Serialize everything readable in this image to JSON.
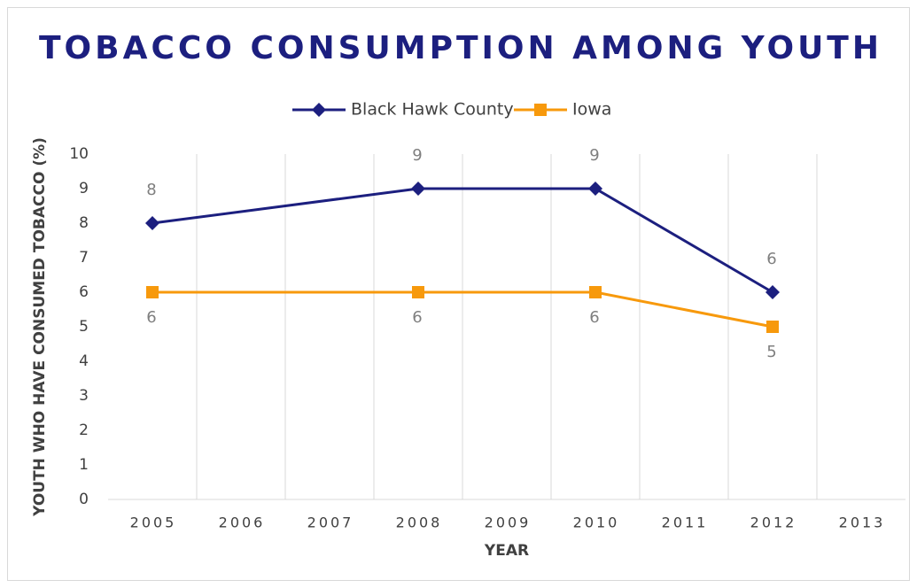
{
  "chart_data": {
    "type": "line",
    "title": "TOBACCO CONSUMPTION AMONG YOUTH",
    "x_label": "YEAR",
    "y_label": "YOUTH WHO HAVE CONSUMED TOBACCO (%)",
    "x": [
      2005,
      2008,
      2010,
      2012
    ],
    "series": [
      {
        "name": "Black Hawk County",
        "color": "#1c1f7f",
        "values": [
          8,
          9,
          9,
          6
        ]
      },
      {
        "name": "Iowa",
        "color": "#f7990c",
        "values": [
          6,
          6,
          6,
          5
        ]
      }
    ],
    "xlim": [
      2004.5,
      2013.5
    ],
    "xticks": [
      2005,
      2006,
      2007,
      2008,
      2009,
      2010,
      2011,
      2012,
      2013
    ],
    "ylim": [
      0,
      10
    ],
    "yticks": [
      0,
      1,
      2,
      3,
      4,
      5,
      6,
      7,
      8,
      9,
      10
    ],
    "grid": true,
    "legend": "top"
  }
}
